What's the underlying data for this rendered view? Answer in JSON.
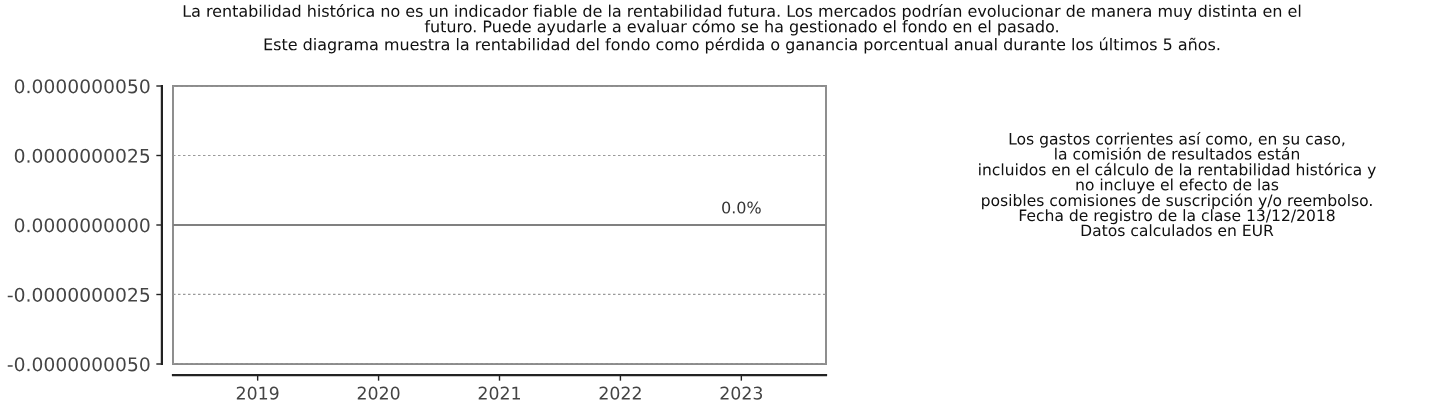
{
  "chart_data": {
    "type": "bar",
    "title": "La rentabilidad histórica no es un indicador fiable de la rentabilidad futura. Los mercados podrían evolucionar de manera muy distinta en el\nfuturo. Puede ayudarle a evaluar cómo se ha gestionado el fondo en el pasado.",
    "subtitle": "Este diagrama muestra la rentabilidad del fondo como pérdida o ganancia porcentual anual durante los últimos 5 años.",
    "annotations": [
      "Los gastos corrientes así como, en su caso,\nla comisión de resultados están\nincluidos en el cálculo de la rentabilidad histórica y\nno incluye el efecto de las\nposibles comisiones de suscripción y/o reembolso.\nFecha de registro de la clase 13/12/2018\nDatos calculados en EUR"
    ],
    "categories": [
      "2019",
      "2020",
      "2021",
      "2022",
      "2023"
    ],
    "values": [
      null,
      null,
      null,
      null,
      0.0
    ],
    "value_labels": [
      null,
      null,
      null,
      null,
      "0.0%"
    ],
    "ylim": [
      -5e-09,
      5e-09
    ],
    "yticks": [
      {
        "value": -5e-09,
        "label": "-0.0000000050"
      },
      {
        "value": -2.5e-09,
        "label": "-0.0000000025"
      },
      {
        "value": 0,
        "label": "0.0000000000"
      },
      {
        "value": 2.5e-09,
        "label": "0.0000000025"
      },
      {
        "value": 5e-09,
        "label": "0.0000000050"
      }
    ],
    "grid": "y",
    "ref_lines": [
      {
        "axis": "y",
        "value": 0,
        "color": "#808080",
        "line_style": "solid"
      }
    ]
  }
}
